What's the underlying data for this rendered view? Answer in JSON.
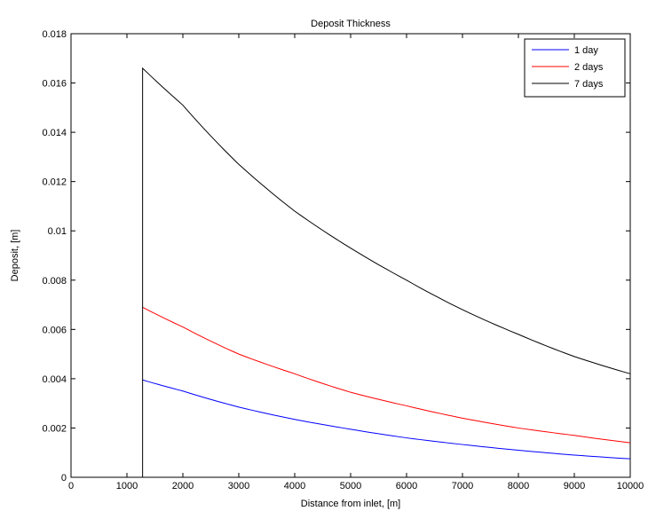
{
  "chart_data": {
    "type": "line",
    "title": "Deposit Thickness",
    "xlabel": "Distance from inlet, [m]",
    "ylabel": "Deposit, [m]",
    "xlim": [
      0,
      10000
    ],
    "ylim": [
      0,
      0.018
    ],
    "xticks": [
      0,
      1000,
      2000,
      3000,
      4000,
      5000,
      6000,
      7000,
      8000,
      9000,
      10000
    ],
    "xtick_labels": [
      "0",
      "1000",
      "2000",
      "3000",
      "4000",
      "5000",
      "6000",
      "7000",
      "8000",
      "9000",
      "10000"
    ],
    "yticks": [
      0,
      0.002,
      0.004,
      0.006,
      0.008,
      0.01,
      0.012,
      0.014,
      0.016,
      0.018
    ],
    "ytick_labels": [
      "0",
      "0.002",
      "0.004",
      "0.006",
      "0.008",
      "0.01",
      "0.012",
      "0.014",
      "0.016",
      "0.018"
    ],
    "grid": false,
    "legend_position": "top-right",
    "series": [
      {
        "name": "1 day",
        "color": "#0000ff",
        "x": [
          1280,
          2000,
          3000,
          4000,
          5000,
          6000,
          7000,
          8000,
          9000,
          10000
        ],
        "y": [
          0.00395,
          0.0035,
          0.00285,
          0.00235,
          0.00195,
          0.0016,
          0.00133,
          0.0011,
          0.0009,
          0.00075
        ]
      },
      {
        "name": "2 days",
        "color": "#ff0000",
        "x": [
          1280,
          2000,
          3000,
          4000,
          5000,
          6000,
          7000,
          8000,
          9000,
          10000
        ],
        "y": [
          0.0069,
          0.0061,
          0.005,
          0.0042,
          0.00345,
          0.0029,
          0.0024,
          0.002,
          0.0017,
          0.0014
        ]
      },
      {
        "name": "7 days",
        "color": "#000000",
        "x": [
          1280,
          1280,
          2000,
          3000,
          4000,
          5000,
          6000,
          7000,
          8000,
          9000,
          10000
        ],
        "y": [
          0,
          0.0166,
          0.0151,
          0.0127,
          0.0108,
          0.0093,
          0.008,
          0.0068,
          0.0058,
          0.0049,
          0.0042
        ]
      }
    ]
  }
}
